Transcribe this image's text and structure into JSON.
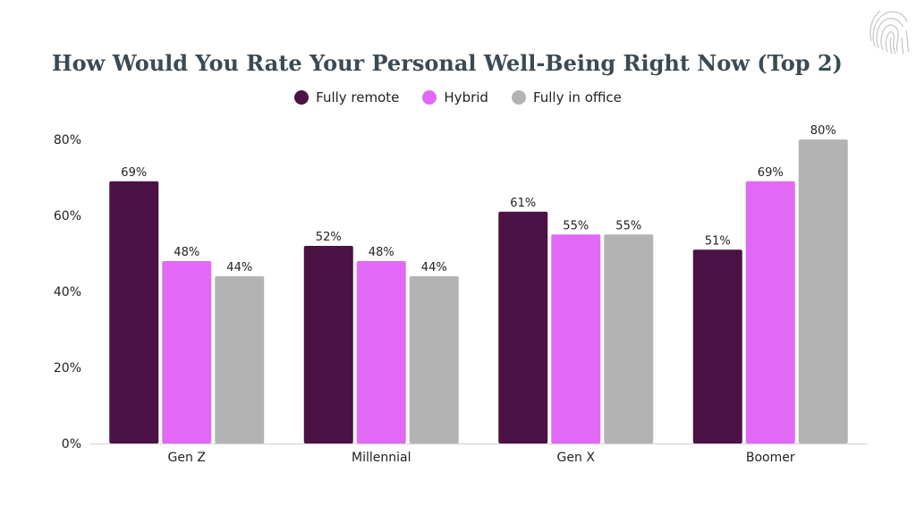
{
  "chart_data": {
    "type": "bar",
    "title": "How Would You Rate Your Personal Well-Being Right Now (Top 2)",
    "categories": [
      "Gen Z",
      "Millennial",
      "Gen X",
      "Boomer"
    ],
    "series": [
      {
        "name": "Fully remote",
        "color": "#4a1245",
        "values": [
          69,
          52,
          61,
          51
        ]
      },
      {
        "name": "Hybrid",
        "color": "#e169f5",
        "values": [
          48,
          48,
          55,
          69
        ]
      },
      {
        "name": "Fully in office",
        "color": "#b3b3b3",
        "values": [
          44,
          44,
          55,
          80
        ]
      }
    ],
    "yticks": [
      "0%",
      "20%",
      "40%",
      "60%",
      "80%"
    ],
    "ylim": [
      0,
      80
    ],
    "value_suffix": "%",
    "legend_position": "top-center",
    "grid": false
  },
  "logo": {
    "icon": "fingerprint-logo-icon"
  }
}
